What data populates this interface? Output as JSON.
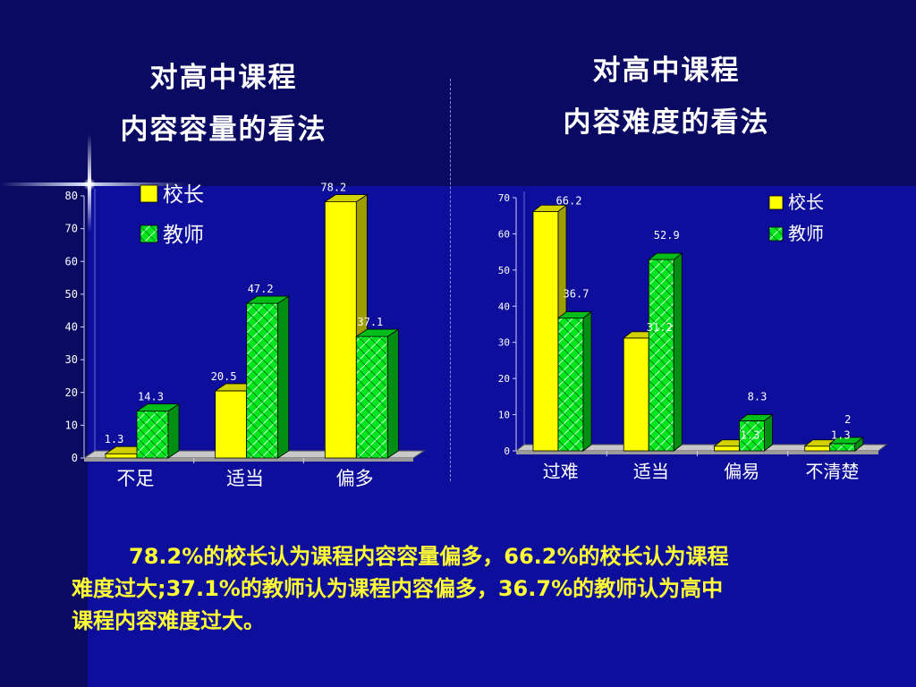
{
  "slide": {
    "title_left_lines": [
      "对高中课程",
      "内容容量的看法"
    ],
    "title_right_lines": [
      "对高中课程",
      "内容难度的看法"
    ],
    "summary_lines": [
      "78.2%的校长认为课程内容容量偏多，66.2%的校长认为课程",
      "难度过大;37.1%的教师认为课程内容偏多，36.7%的教师认为高中",
      "课程内容难度过大。"
    ]
  },
  "colors": {
    "principal": "#ffff00",
    "teacher": "#00e61e",
    "text_white": "#ffffff",
    "summary_text": "#ffff33"
  },
  "chart_data": [
    {
      "type": "bar",
      "categories": [
        "不足",
        "适当",
        "偏多"
      ],
      "series": [
        {
          "name": "校长",
          "values": [
            1.3,
            20.5,
            78.2
          ]
        },
        {
          "name": "教师",
          "values": [
            14.3,
            47.2,
            37.1
          ]
        }
      ],
      "ylim": [
        0,
        80
      ],
      "yticks": [
        0,
        10,
        20,
        30,
        40,
        50,
        60,
        70,
        80
      ],
      "value_labels": [
        [
          "1.3",
          "20.5",
          "78.2"
        ],
        [
          "14.3",
          "47.2",
          "37.1"
        ]
      ],
      "legend": "top-left",
      "grid": false
    },
    {
      "type": "bar",
      "categories": [
        "过难",
        "适当",
        "偏易",
        "不清楚"
      ],
      "series": [
        {
          "name": "校长",
          "values": [
            66.2,
            31.2,
            1.3,
            1.3
          ]
        },
        {
          "name": "教师",
          "values": [
            36.7,
            52.9,
            8.3,
            2
          ]
        }
      ],
      "ylim": [
        0,
        70
      ],
      "yticks": [
        0,
        10,
        20,
        30,
        40,
        50,
        60,
        70
      ],
      "value_labels": [
        [
          "66.2",
          "31.2",
          "1.3",
          "1.3"
        ],
        [
          "36.7",
          "52.9",
          "8.3",
          "2"
        ]
      ],
      "legend": "top-right",
      "grid": false
    }
  ]
}
